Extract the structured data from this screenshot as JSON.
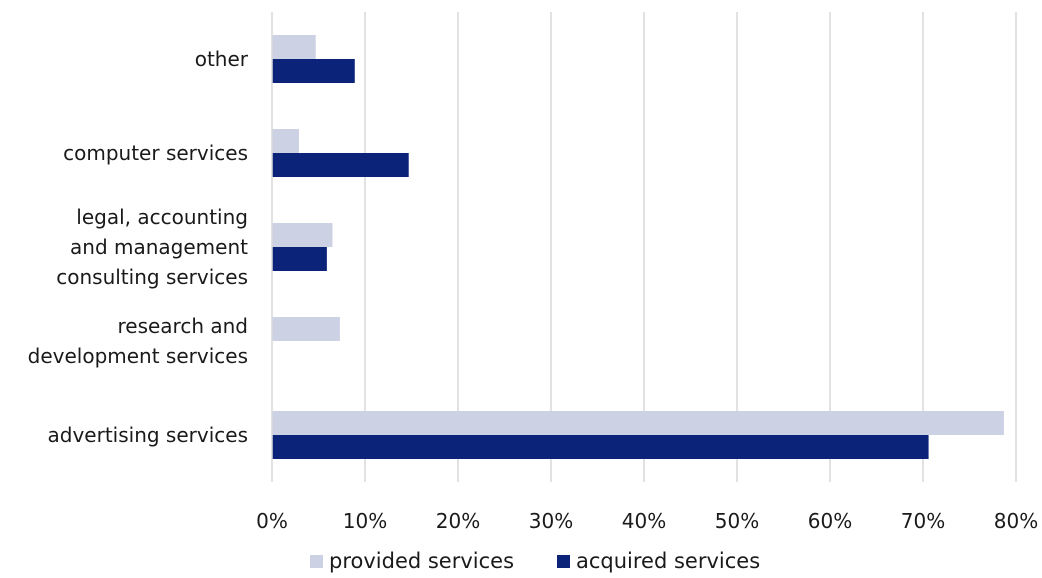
{
  "chart_data": {
    "type": "bar",
    "orientation": "horizontal",
    "categories": [
      "other",
      "computer services",
      "legal, accounting and management consulting services",
      "research and development services",
      "advertising services"
    ],
    "category_lines": [
      [
        "other"
      ],
      [
        "computer services"
      ],
      [
        "legal, accounting",
        "and management",
        "consulting services"
      ],
      [
        "research and",
        "development services"
      ],
      [
        "advertising services"
      ]
    ],
    "series": [
      {
        "name": "provided services",
        "color": "#cdd1e4",
        "values": [
          4.7,
          2.9,
          6.5,
          7.3,
          78.7
        ]
      },
      {
        "name": "acquired services",
        "color": "#0b2378",
        "values": [
          8.9,
          14.7,
          5.9,
          0,
          70.6
        ]
      }
    ],
    "xlim": [
      0,
      80
    ],
    "xticks": [
      "0%",
      "10%",
      "20%",
      "30%",
      "40%",
      "50%",
      "60%",
      "70%",
      "80%"
    ],
    "grid": true,
    "legend_position": "bottom",
    "title": "",
    "xlabel": "",
    "ylabel": ""
  }
}
